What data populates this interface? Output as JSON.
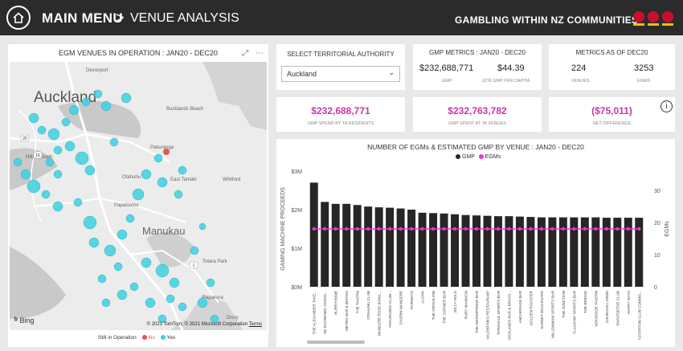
{
  "header": {
    "main_menu": "MAIN MENU",
    "separator": ">",
    "page": "VENUE ANALYSIS",
    "report_title": "GAMBLING WITHIN NZ COMMUNITIES"
  },
  "map": {
    "title": "EGM VENUES IN OPERATION : JAN20 - DEC20",
    "focus_icon": "focus-mode-icon",
    "more_icon": "more-options-icon",
    "bing": "Bing",
    "copyright": "© 2021 TomTom, © 2021 Microsoft Corporation",
    "terms": "Terms",
    "legend_title": "Still in Operation",
    "legend_no": "No",
    "legend_yes": "Yes",
    "color_no": "#e8534a",
    "color_yes": "#3fd0e0",
    "place_labels": [
      {
        "text": "Auckland",
        "size": "big"
      },
      {
        "text": "Devonport",
        "size": "small"
      },
      {
        "text": "Bucklands Beach",
        "size": "small"
      },
      {
        "text": "Pakuranga",
        "size": "small"
      },
      {
        "text": "East Tamaki",
        "size": "small"
      },
      {
        "text": "Otahuhu",
        "size": "small"
      },
      {
        "text": "Papatoetoe",
        "size": "small"
      },
      {
        "text": "Manukau",
        "size": "mid"
      },
      {
        "text": "Whitford",
        "size": "small"
      },
      {
        "text": "Hillsborough",
        "size": "small"
      },
      {
        "text": "Totara Park",
        "size": "small"
      },
      {
        "text": "Papakura",
        "size": "small"
      },
      {
        "text": "Drury",
        "size": "small"
      }
    ],
    "route_labels": [
      "20",
      "16",
      "1"
    ]
  },
  "filter": {
    "label": "SELECT TERRITORIAL AUTHORITY",
    "value": "Auckland"
  },
  "gmp_metrics": {
    "title": "GMP METRICS : JAN20 - DEC20",
    "gmp_value": "$232,688,771",
    "gmp_label": "GMP",
    "qtr_value": "$44.39",
    "qtr_label": "QTR GMP PER CAPITA"
  },
  "metrics_as_of": {
    "title": "METRICS AS OF DEC20",
    "venues_value": "224",
    "venues_label": "VENUES",
    "egms_value": "3253",
    "egms_label": "EGMS"
  },
  "spend_cards": [
    {
      "value": "$232,688,771",
      "label": "GMP SPEND BY TA RESIDENTS"
    },
    {
      "value": "$232,763,782",
      "label": "GMP SPENT AT TA VENUES"
    },
    {
      "value": "($75,011)",
      "label": "NET DIFFERENCE"
    }
  ],
  "info_icon": "info-icon",
  "chart_data": {
    "type": "bar",
    "title": "NUMBER OF EGMs & ESTIMATED GMP BY VENUE : JAN20 - DEC20",
    "ylabel": "GAMING MACHINE PROCEEDS",
    "y2label": "EGMs",
    "ylim": [
      0,
      3000000
    ],
    "y2lim": [
      0,
      36
    ],
    "yticks": [
      "$0M",
      "$1M",
      "$2M",
      "$3M"
    ],
    "y2ticks": [
      "0",
      "10",
      "20",
      "30"
    ],
    "legend": [
      {
        "name": "GMP",
        "color": "#262626"
      },
      {
        "name": "EGMs",
        "color": "#e935c8"
      }
    ],
    "categories": [
      "THE ALEXANDER TAVE...",
      "NZ ECONOMIC ASSOC...",
      "HURRYHOME",
      "METRO BAR & BISTRO",
      "THE TAVERN",
      "OTAHUHU CLUB",
      "MANGERE ROSE BOWL...",
      "PAKURANGA CLUB...",
      "TAVERN MANGERE",
      "FAIRWAYS",
      "ALOHA",
      "THE GROVE INN",
      "THE CORNER BAR",
      "JOLLY HOLD",
      "RUBY MANSION",
      "THE WATERFRONT BAR",
      "VALENTINES RESTAURANT",
      "TARADALE SPORTS BAR",
      "WOODLANDS BAR & BRASS...",
      "ANCHORAGE BAR",
      "GOLDEN ROOSTER",
      "SUNSET BOULEVARD",
      "MILLENNIUM SPORTS BAR",
      "THE JUNCTION",
      "FLAGSHIP SPORTS BAR",
      "THE BRIDGE",
      "WOODSIDE TAVERN",
      "CHURCHILL ARMS",
      "PAPATOETOE CLUB",
      "HAPPY DAYS",
      "MASTERTON CLUB COMMO..."
    ],
    "series": [
      {
        "name": "GMP",
        "values": [
          2700000,
          2200000,
          2150000,
          2150000,
          2120000,
          2080000,
          2060000,
          2050000,
          2030000,
          2000000,
          1920000,
          1910000,
          1900000,
          1880000,
          1860000,
          1850000,
          1840000,
          1830000,
          1830000,
          1820000,
          1810000,
          1800000,
          1800000,
          1800000,
          1800000,
          1800000,
          1800000,
          1790000,
          1790000,
          1790000,
          1790000
        ]
      },
      {
        "name": "EGMs",
        "values": [
          18,
          18,
          18,
          18,
          18,
          18,
          18,
          18,
          18,
          18,
          18,
          18,
          18,
          18,
          18,
          18,
          18,
          18,
          18,
          18,
          18,
          18,
          18,
          18,
          18,
          18,
          18,
          18,
          18,
          18,
          18
        ]
      }
    ]
  }
}
